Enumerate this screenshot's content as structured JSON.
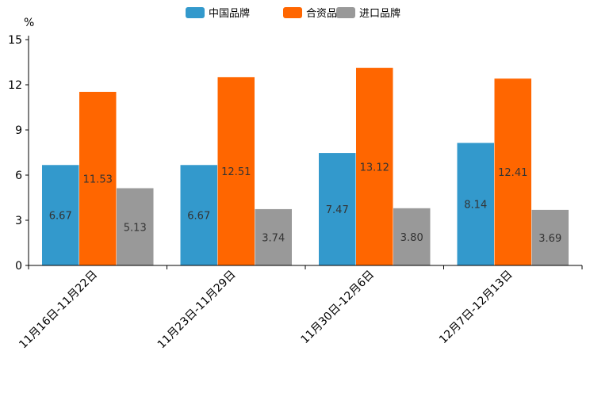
{
  "chart_data": {
    "type": "bar",
    "title": "",
    "xlabel": "",
    "ylabel": "",
    "y_unit": "%",
    "ylim": [
      0,
      15
    ],
    "yticks": [
      0,
      3,
      6,
      9,
      12,
      15
    ],
    "grid": false,
    "legend_position": "top-center",
    "categories": [
      "11月16日-11月22日",
      "11月23日-11月29日",
      "11月30日-12月6日",
      "12月7日-12月13日"
    ],
    "series": [
      {
        "name": "中国品牌",
        "color": "#3399cc",
        "values": [
          6.67,
          6.67,
          7.47,
          8.14
        ],
        "labels": [
          "6.67",
          "6.67",
          "7.47",
          "8.14"
        ]
      },
      {
        "name": "合资品牌",
        "color": "#ff6600",
        "values": [
          11.53,
          12.51,
          13.12,
          12.41
        ],
        "labels": [
          "11.53",
          "12.51",
          "13.12",
          "12.41"
        ]
      },
      {
        "name": "进口品牌",
        "color": "#999999",
        "values": [
          5.13,
          3.74,
          3.8,
          3.69
        ],
        "labels": [
          "5.13",
          "3.74",
          "3.80",
          "3.69"
        ]
      }
    ]
  }
}
